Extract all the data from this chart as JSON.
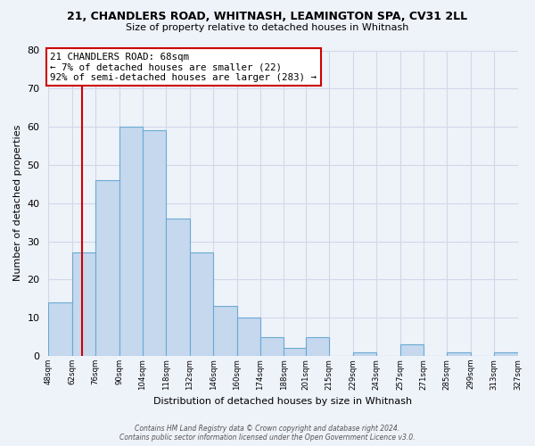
{
  "title_line1": "21, CHANDLERS ROAD, WHITNASH, LEAMINGTON SPA, CV31 2LL",
  "title_line2": "Size of property relative to detached houses in Whitnash",
  "xlabel": "Distribution of detached houses by size in Whitnash",
  "ylabel": "Number of detached properties",
  "bar_color": "#c5d8ee",
  "bar_edge_color": "#6aaad4",
  "bin_edges": [
    48,
    62,
    76,
    90,
    104,
    118,
    132,
    146,
    160,
    174,
    188,
    201,
    215,
    229,
    243,
    257,
    271,
    285,
    299,
    313,
    327
  ],
  "bar_heights": [
    14,
    27,
    46,
    60,
    59,
    36,
    27,
    13,
    10,
    5,
    2,
    5,
    0,
    1,
    0,
    3,
    0,
    1,
    0,
    1
  ],
  "xtick_labels": [
    "48sqm",
    "62sqm",
    "76sqm",
    "90sqm",
    "104sqm",
    "118sqm",
    "132sqm",
    "146sqm",
    "160sqm",
    "174sqm",
    "188sqm",
    "201sqm",
    "215sqm",
    "229sqm",
    "243sqm",
    "257sqm",
    "271sqm",
    "285sqm",
    "299sqm",
    "313sqm",
    "327sqm"
  ],
  "ylim": [
    0,
    80
  ],
  "yticks": [
    0,
    10,
    20,
    30,
    40,
    50,
    60,
    70,
    80
  ],
  "vline_x": 68,
  "vline_color": "#cc0000",
  "annotation_title": "21 CHANDLERS ROAD: 68sqm",
  "annotation_line1": "← 7% of detached houses are smaller (22)",
  "annotation_line2": "92% of semi-detached houses are larger (283) →",
  "annotation_box_color": "#ffffff",
  "annotation_box_edge_color": "#cc0000",
  "footer_line1": "Contains HM Land Registry data © Crown copyright and database right 2024.",
  "footer_line2": "Contains public sector information licensed under the Open Government Licence v3.0.",
  "background_color": "#eef2f9",
  "grid_color": "#d0d8e8",
  "title_fontsize": 9,
  "title2_fontsize": 8,
  "ylabel_fontsize": 8,
  "xlabel_fontsize": 8
}
